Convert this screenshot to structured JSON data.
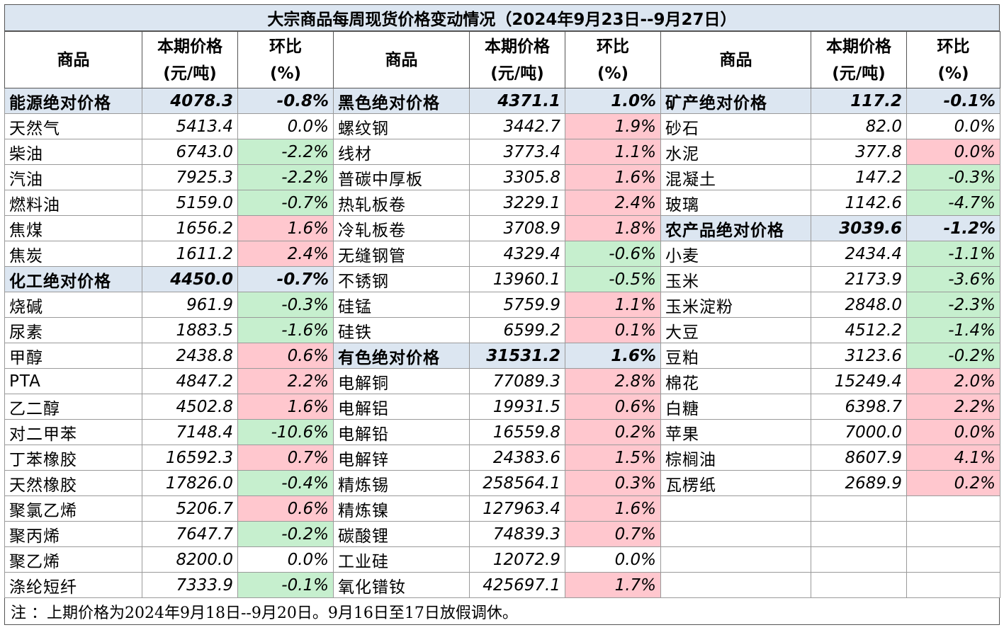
{
  "title": "大宗商品每周现货价格变动情况（2024年9月23日--9月27日）",
  "headers": {
    "name": "商品",
    "price_line1": "本期价格",
    "price_line2": "(元/吨)",
    "pct_line1": "环比",
    "pct_line2": "(%)"
  },
  "colors": {
    "positive_bg": "#ffc7ce",
    "negative_bg": "#c6efce",
    "group_bg": "#dce6f1"
  },
  "columns": [
    [
      {
        "name": "能源绝对价格",
        "price": "4078.3",
        "pct": "-0.8%",
        "group": true
      },
      {
        "name": "天然气",
        "price": "5413.4",
        "pct": "0.0%",
        "tone": "none"
      },
      {
        "name": "柴油",
        "price": "6743.0",
        "pct": "-2.2%",
        "tone": "neg"
      },
      {
        "name": "汽油",
        "price": "7925.3",
        "pct": "-2.2%",
        "tone": "neg"
      },
      {
        "name": "燃料油",
        "price": "5159.0",
        "pct": "-0.7%",
        "tone": "neg"
      },
      {
        "name": "焦煤",
        "price": "1656.2",
        "pct": "1.6%",
        "tone": "pos"
      },
      {
        "name": "焦炭",
        "price": "1611.2",
        "pct": "2.4%",
        "tone": "pos"
      },
      {
        "name": "化工绝对价格",
        "price": "4450.0",
        "pct": "-0.7%",
        "group": true
      },
      {
        "name": "烧碱",
        "price": "961.9",
        "pct": "-0.3%",
        "tone": "neg"
      },
      {
        "name": "尿素",
        "price": "1883.5",
        "pct": "-1.6%",
        "tone": "neg"
      },
      {
        "name": "甲醇",
        "price": "2438.8",
        "pct": "0.6%",
        "tone": "pos"
      },
      {
        "name": "PTA",
        "price": "4847.2",
        "pct": "2.2%",
        "tone": "pos"
      },
      {
        "name": "乙二醇",
        "price": "4502.8",
        "pct": "1.6%",
        "tone": "pos"
      },
      {
        "name": "对二甲苯",
        "price": "7148.4",
        "pct": "-10.6%",
        "tone": "neg"
      },
      {
        "name": "丁苯橡胶",
        "price": "16592.3",
        "pct": "0.7%",
        "tone": "pos"
      },
      {
        "name": "天然橡胶",
        "price": "17826.0",
        "pct": "-0.4%",
        "tone": "neg"
      },
      {
        "name": "聚氯乙烯",
        "price": "5206.7",
        "pct": "0.6%",
        "tone": "pos"
      },
      {
        "name": "聚丙烯",
        "price": "7647.7",
        "pct": "-0.2%",
        "tone": "neg"
      },
      {
        "name": "聚乙烯",
        "price": "8200.0",
        "pct": "0.0%",
        "tone": "none"
      },
      {
        "name": "涤纶短纤",
        "price": "7333.9",
        "pct": "-0.1%",
        "tone": "neg"
      }
    ],
    [
      {
        "name": "黑色绝对价格",
        "price": "4371.1",
        "pct": "1.0%",
        "group": true
      },
      {
        "name": "螺纹钢",
        "price": "3442.7",
        "pct": "1.9%",
        "tone": "pos"
      },
      {
        "name": "线材",
        "price": "3773.4",
        "pct": "1.1%",
        "tone": "pos"
      },
      {
        "name": "普碳中厚板",
        "price": "3305.8",
        "pct": "1.6%",
        "tone": "pos"
      },
      {
        "name": "热轧板卷",
        "price": "3229.1",
        "pct": "2.4%",
        "tone": "pos"
      },
      {
        "name": "冷轧板卷",
        "price": "3708.9",
        "pct": "1.8%",
        "tone": "pos"
      },
      {
        "name": "无缝钢管",
        "price": "4329.4",
        "pct": "-0.6%",
        "tone": "neg"
      },
      {
        "name": "不锈钢",
        "price": "13960.1",
        "pct": "-0.5%",
        "tone": "neg"
      },
      {
        "name": "硅锰",
        "price": "5759.9",
        "pct": "1.1%",
        "tone": "pos"
      },
      {
        "name": "硅铁",
        "price": "6599.2",
        "pct": "0.1%",
        "tone": "pos"
      },
      {
        "name": "有色绝对价格",
        "price": "31531.2",
        "pct": "1.6%",
        "group": true
      },
      {
        "name": "电解铜",
        "price": "77089.3",
        "pct": "2.8%",
        "tone": "pos"
      },
      {
        "name": "电解铝",
        "price": "19931.5",
        "pct": "0.6%",
        "tone": "pos"
      },
      {
        "name": "电解铅",
        "price": "16559.8",
        "pct": "0.2%",
        "tone": "pos"
      },
      {
        "name": "电解锌",
        "price": "24383.6",
        "pct": "1.5%",
        "tone": "pos"
      },
      {
        "name": "精炼锡",
        "price": "258564.1",
        "pct": "0.3%",
        "tone": "pos"
      },
      {
        "name": "精炼镍",
        "price": "127963.4",
        "pct": "1.6%",
        "tone": "pos"
      },
      {
        "name": "碳酸锂",
        "price": "74839.3",
        "pct": "0.7%",
        "tone": "pos"
      },
      {
        "name": "工业硅",
        "price": "12072.9",
        "pct": "0.0%",
        "tone": "none"
      },
      {
        "name": "氧化镨钕",
        "price": "425697.1",
        "pct": "1.7%",
        "tone": "pos"
      }
    ],
    [
      {
        "name": "矿产绝对价格",
        "price": "117.2",
        "pct": "-0.1%",
        "group": true
      },
      {
        "name": "砂石",
        "price": "82.0",
        "pct": "0.0%",
        "tone": "none"
      },
      {
        "name": "水泥",
        "price": "377.8",
        "pct": "0.0%",
        "tone": "pos"
      },
      {
        "name": "混凝土",
        "price": "147.2",
        "pct": "-0.3%",
        "tone": "neg"
      },
      {
        "name": "玻璃",
        "price": "1142.6",
        "pct": "-4.7%",
        "tone": "neg"
      },
      {
        "name": "农产品绝对价格",
        "price": "3039.6",
        "pct": "-1.2%",
        "group": true
      },
      {
        "name": "小麦",
        "price": "2434.4",
        "pct": "-1.1%",
        "tone": "neg"
      },
      {
        "name": "玉米",
        "price": "2173.9",
        "pct": "-3.6%",
        "tone": "neg"
      },
      {
        "name": "玉米淀粉",
        "price": "2848.0",
        "pct": "-2.3%",
        "tone": "neg"
      },
      {
        "name": "大豆",
        "price": "4512.2",
        "pct": "-1.4%",
        "tone": "neg"
      },
      {
        "name": "豆粕",
        "price": "3123.6",
        "pct": "-0.2%",
        "tone": "neg"
      },
      {
        "name": "棉花",
        "price": "15249.4",
        "pct": "2.0%",
        "tone": "pos"
      },
      {
        "name": "白糖",
        "price": "6398.7",
        "pct": "2.2%",
        "tone": "pos"
      },
      {
        "name": "苹果",
        "price": "7000.0",
        "pct": "0.0%",
        "tone": "pos"
      },
      {
        "name": "棕榈油",
        "price": "8607.9",
        "pct": "4.1%",
        "tone": "pos"
      },
      {
        "name": "瓦楞纸",
        "price": "2689.9",
        "pct": "0.2%",
        "tone": "pos"
      },
      {
        "name": "",
        "price": "",
        "pct": "",
        "tone": "none"
      },
      {
        "name": "",
        "price": "",
        "pct": "",
        "tone": "none"
      },
      {
        "name": "",
        "price": "",
        "pct": "",
        "tone": "none"
      },
      {
        "name": "",
        "price": "",
        "pct": "",
        "tone": "none"
      }
    ]
  ],
  "note": "注 ：上期价格为2024年9月18日--9月20日。9月16日至17日放假调休。"
}
